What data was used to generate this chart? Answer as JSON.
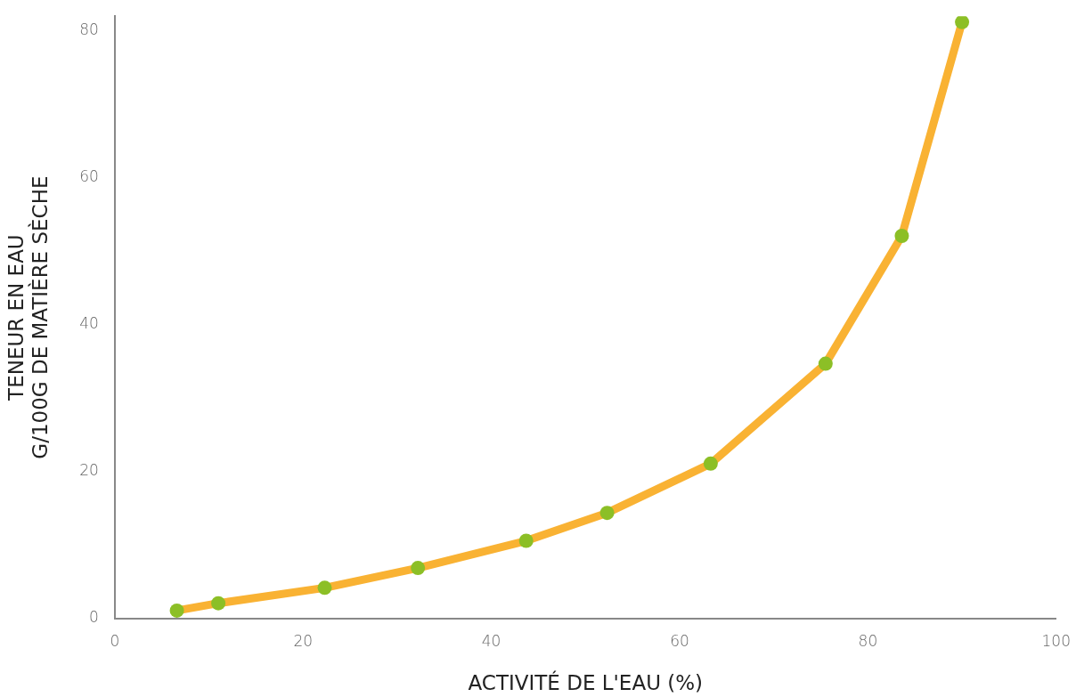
{
  "chart_data": {
    "type": "line",
    "xlabel": "ACTIVITÉ DE L'EAU (%)",
    "ylabel": "TENEUR EN EAU\nG/100G DE MATIÈRE SÈCHE",
    "x": [
      6.6,
      11.0,
      22.3,
      32.2,
      43.7,
      52.3,
      63.3,
      75.5,
      83.6,
      90.0
    ],
    "series": [
      {
        "color": "#f9b233",
        "colors": [
          "#8cbf26",
          "#8cbf26",
          "#8cbf26",
          "#8cbf26",
          "#8cbf26",
          "#8cbf26",
          "#8cbf26",
          "#8cbf26",
          "#8cbf26",
          "#8cbf26"
        ],
        "values": [
          1.1,
          2.1,
          4.2,
          6.9,
          10.6,
          14.4,
          21.1,
          34.7,
          52.1,
          81.2
        ]
      }
    ],
    "xlim": [
      0,
      100
    ],
    "xticks": [
      0,
      20,
      40,
      60,
      80,
      100
    ],
    "ylim": [
      0,
      82
    ],
    "yticks": [
      0,
      20,
      40,
      60,
      80
    ],
    "grid": false,
    "legend": false,
    "marker": "circle",
    "line_style": "solid"
  }
}
